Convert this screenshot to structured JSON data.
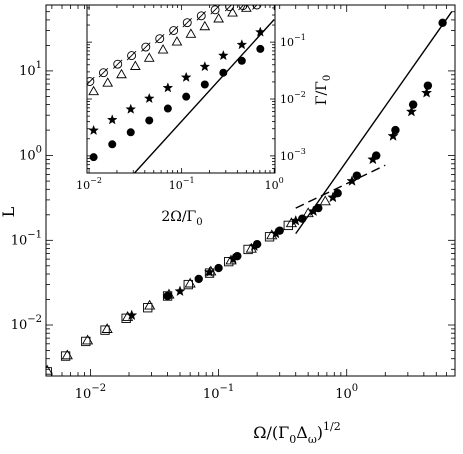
{
  "chart_data": [
    {
      "type": "scatter",
      "panel": "main",
      "xscale": "log",
      "yscale": "log",
      "xlim": [
        0.0045,
        7
      ],
      "ylim": [
        0.0025,
        60
      ],
      "xlabel": {
        "base": "Ω/(Γ",
        "sub1": "0",
        "mid": "Δ",
        "sub2": "ω",
        "close": ")",
        "sup": "1/2"
      },
      "ylabel": "L",
      "xticks": [
        {
          "value": 0.01,
          "base": "10",
          "exp": "−2"
        },
        {
          "value": 0.1,
          "base": "10",
          "exp": "−1"
        },
        {
          "value": 1,
          "base": "10",
          "exp": "0"
        }
      ],
      "yticks": [
        {
          "value": 0.01,
          "base": "10",
          "exp": "−2"
        },
        {
          "value": 0.1,
          "base": "10",
          "exp": "−1"
        },
        {
          "value": 1,
          "base": "10",
          "exp": "0"
        },
        {
          "value": 10,
          "base": "10",
          "exp": "1"
        }
      ],
      "series": [
        {
          "marker": "square",
          "points": [
            [
              0.0046,
              0.0028
            ],
            [
              0.0064,
              0.0043
            ],
            [
              0.0092,
              0.0064
            ],
            [
              0.013,
              0.0087
            ],
            [
              0.019,
              0.012
            ],
            [
              0.028,
              0.016
            ],
            [
              0.04,
              0.022
            ],
            [
              0.058,
              0.03
            ],
            [
              0.085,
              0.041
            ],
            [
              0.12,
              0.056
            ],
            [
              0.17,
              0.078
            ],
            [
              0.25,
              0.11
            ],
            [
              0.35,
              0.15
            ]
          ]
        },
        {
          "marker": "triangle",
          "points": [
            [
              0.0046,
              0.0029
            ],
            [
              0.0066,
              0.0044
            ],
            [
              0.0095,
              0.0066
            ],
            [
              0.0135,
              0.009
            ],
            [
              0.0195,
              0.0125
            ],
            [
              0.029,
              0.017
            ],
            [
              0.041,
              0.023
            ],
            [
              0.06,
              0.031
            ],
            [
              0.087,
              0.043
            ],
            [
              0.125,
              0.058
            ],
            [
              0.18,
              0.08
            ],
            [
              0.26,
              0.115
            ],
            [
              0.37,
              0.16
            ],
            [
              0.5,
              0.21
            ],
            [
              0.68,
              0.29
            ]
          ]
        },
        {
          "marker": "star",
          "points": [
            [
              0.021,
              0.013
            ],
            [
              0.05,
              0.025
            ],
            [
              0.085,
              0.042
            ],
            [
              0.13,
              0.06
            ],
            [
              0.19,
              0.085
            ],
            [
              0.28,
              0.12
            ],
            [
              0.4,
              0.17
            ],
            [
              0.55,
              0.22
            ],
            [
              0.78,
              0.32
            ],
            [
              1.1,
              0.5
            ],
            [
              1.6,
              0.9
            ],
            [
              2.3,
              1.7
            ],
            [
              3.2,
              3.3
            ],
            [
              4.2,
              5.5
            ]
          ]
        },
        {
          "marker": "filled-circle",
          "points": [
            [
              0.04,
              0.022
            ],
            [
              0.07,
              0.035
            ],
            [
              0.1,
              0.047
            ],
            [
              0.14,
              0.065
            ],
            [
              0.2,
              0.09
            ],
            [
              0.3,
              0.13
            ],
            [
              0.45,
              0.18
            ],
            [
              0.6,
              0.24
            ],
            [
              0.85,
              0.36
            ],
            [
              1.2,
              0.58
            ],
            [
              1.7,
              1.0
            ],
            [
              2.4,
              2.0
            ],
            [
              3.3,
              4.0
            ],
            [
              4.3,
              6.7
            ],
            [
              5.6,
              37
            ]
          ]
        }
      ],
      "lines": [
        {
          "style": "solid",
          "points": [
            [
              0.4,
              0.12
            ],
            [
              6.6,
              50
            ]
          ]
        },
        {
          "style": "dashed",
          "points": [
            [
              0.4,
              0.24
            ],
            [
              2.0,
              0.77
            ]
          ]
        }
      ]
    },
    {
      "type": "scatter",
      "panel": "inset",
      "xscale": "log",
      "yscale": "log",
      "xlim": [
        0.0095,
        1.02
      ],
      "ylim": [
        0.0005,
        0.45
      ],
      "xlabel": {
        "base": "2Ω/Γ",
        "sub": "0"
      },
      "ylabel": {
        "base": "Γ/Γ",
        "sub": "0"
      },
      "xticks": [
        {
          "value": 0.01,
          "base": "10",
          "exp": "−2"
        },
        {
          "value": 0.1,
          "base": "10",
          "exp": "−1"
        },
        {
          "value": 1,
          "base": "10",
          "exp": "0"
        }
      ],
      "yticks": [
        {
          "value": 0.001,
          "base": "10",
          "exp": "−3"
        },
        {
          "value": 0.01,
          "base": "10",
          "exp": "−2"
        },
        {
          "value": 0.1,
          "base": "10",
          "exp": "−1"
        }
      ],
      "series": [
        {
          "marker": "open-circle-cross",
          "points": [
            [
              0.0102,
              0.0203
            ],
            [
              0.0143,
              0.029
            ],
            [
              0.0204,
              0.041
            ],
            [
              0.0288,
              0.058
            ],
            [
              0.041,
              0.082
            ],
            [
              0.058,
              0.115
            ],
            [
              0.082,
              0.16
            ],
            [
              0.115,
              0.22
            ],
            [
              0.163,
              0.29
            ],
            [
              0.23,
              0.37
            ],
            [
              0.33,
              0.42
            ],
            [
              0.46,
              0.44
            ],
            [
              0.65,
              0.45
            ]
          ]
        },
        {
          "marker": "triangle",
          "points": [
            [
              0.0112,
              0.0137
            ],
            [
              0.0159,
              0.0193
            ],
            [
              0.0224,
              0.0272
            ],
            [
              0.0316,
              0.038
            ],
            [
              0.0447,
              0.053
            ],
            [
              0.063,
              0.074
            ],
            [
              0.089,
              0.102
            ],
            [
              0.126,
              0.14
            ],
            [
              0.178,
              0.19
            ],
            [
              0.251,
              0.26
            ],
            [
              0.355,
              0.33
            ],
            [
              0.5,
              0.4
            ]
          ]
        },
        {
          "marker": "star",
          "points": [
            [
              0.0112,
              0.0028
            ],
            [
              0.0178,
              0.0043
            ],
            [
              0.0282,
              0.0066
            ],
            [
              0.0447,
              0.0102
            ],
            [
              0.071,
              0.0157
            ],
            [
              0.112,
              0.024
            ],
            [
              0.178,
              0.037
            ],
            [
              0.282,
              0.058
            ],
            [
              0.447,
              0.09
            ],
            [
              0.708,
              0.15
            ]
          ]
        },
        {
          "marker": "filled-circle",
          "points": [
            [
              0.0112,
              0.00095
            ],
            [
              0.0178,
              0.0016
            ],
            [
              0.0282,
              0.0026
            ],
            [
              0.0447,
              0.0042
            ],
            [
              0.071,
              0.0068
            ],
            [
              0.112,
              0.011
            ],
            [
              0.178,
              0.018
            ],
            [
              0.282,
              0.029
            ],
            [
              0.447,
              0.047
            ],
            [
              0.708,
              0.076
            ]
          ]
        }
      ],
      "lines": [
        {
          "style": "solid",
          "points": [
            [
              0.031,
              0.0005
            ],
            [
              1.0,
              0.25
            ]
          ]
        }
      ]
    }
  ]
}
